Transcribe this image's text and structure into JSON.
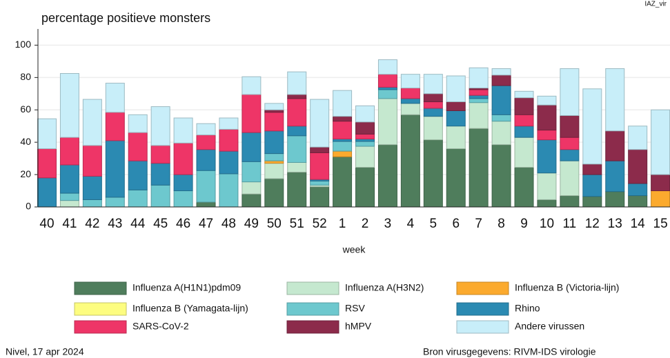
{
  "chart_data": {
    "type": "stacked_bar",
    "title": "percentage positieve monsters",
    "corner_label": "IAZ_vir",
    "x_label": "week",
    "footer_left": "Nivel, 17 apr 2024",
    "footer_right": "Bron virusgegevens: RIVM-IDS virologie",
    "categories": [
      "40",
      "41",
      "42",
      "43",
      "44",
      "45",
      "46",
      "47",
      "48",
      "49",
      "50",
      "51",
      "52",
      "1",
      "2",
      "3",
      "4",
      "5",
      "6",
      "7",
      "8",
      "9",
      "10",
      "11",
      "12",
      "13",
      "14",
      "15"
    ],
    "ylim": [
      0,
      110
    ],
    "yticks": [
      0,
      20,
      40,
      60,
      80,
      100
    ],
    "grid": true,
    "legend": "bottom",
    "series": [
      {
        "name": "Influenza A(H1N1)pdm09",
        "color": "#4f7d5c",
        "values": [
          0,
          0,
          0,
          0,
          0,
          0,
          0,
          3,
          0,
          8,
          17.5,
          21.5,
          12.5,
          31,
          24.5,
          38.5,
          57,
          41.5,
          36,
          48.5,
          38.5,
          24.5,
          4.5,
          7,
          6.5,
          9.5,
          7,
          0
        ]
      },
      {
        "name": "Influenza A(H3N2)",
        "color": "#c5e8cf",
        "values": [
          0,
          4,
          0,
          0,
          0,
          0,
          0,
          0,
          0,
          7.5,
          9.5,
          6,
          1,
          0,
          13,
          28.5,
          7,
          14.5,
          14,
          16,
          14.5,
          18.5,
          16.5,
          21.5,
          0,
          0,
          0,
          0
        ]
      },
      {
        "name": "Influenza B (Victoria-lijn)",
        "color": "#fbaa2e",
        "values": [
          0,
          0,
          0,
          0,
          0,
          0,
          0,
          0,
          0,
          0,
          1.5,
          0,
          0,
          3.5,
          0,
          0,
          0,
          0,
          0,
          0,
          0,
          0,
          0,
          0,
          0,
          0,
          0,
          10
        ]
      },
      {
        "name": "Influenza B (Yamagata-lijn)",
        "color": "#fdfd80",
        "values": [
          0,
          0,
          0,
          0,
          0,
          0,
          0,
          0,
          0,
          0,
          0,
          0,
          0,
          0,
          0,
          0,
          0,
          0,
          0,
          0,
          0,
          0,
          0,
          0,
          0,
          0,
          0,
          0
        ]
      },
      {
        "name": "RSV",
        "color": "#6dc8ce",
        "values": [
          0,
          4.5,
          4.5,
          6,
          10.5,
          13.5,
          10,
          19.5,
          20.5,
          12.5,
          4.5,
          16.5,
          2.5,
          6,
          3,
          5.5,
          0,
          0,
          0,
          2.5,
          4,
          0,
          0,
          0,
          0,
          0,
          0,
          0
        ]
      },
      {
        "name": "Rhino",
        "color": "#2b8ab2",
        "values": [
          18,
          17.5,
          14.5,
          35,
          18,
          13.5,
          10,
          13,
          14,
          18,
          14,
          6,
          1,
          1.5,
          1.5,
          1.5,
          3,
          5,
          9.5,
          2,
          18,
          7,
          20.5,
          7,
          13.5,
          19,
          7.5,
          0
        ]
      },
      {
        "name": "SARS-CoV-2",
        "color": "#ee3567",
        "values": [
          18,
          17,
          19,
          17.5,
          17.5,
          11,
          19.5,
          9,
          13.5,
          23.5,
          11.5,
          17,
          16.5,
          11,
          3,
          8,
          6.5,
          4,
          0,
          3.5,
          0,
          7,
          6,
          7.5,
          0,
          0,
          0,
          0
        ]
      },
      {
        "name": "hMPV",
        "color": "#8c2b4b",
        "values": [
          0,
          0,
          0,
          0,
          0,
          0,
          0,
          0,
          0,
          0,
          1.5,
          2.5,
          3.5,
          3,
          7.5,
          0,
          0,
          5,
          5.5,
          1,
          6.5,
          10.5,
          15.5,
          13.5,
          6.5,
          18.5,
          21,
          10
        ]
      },
      {
        "name": "Andere virussen",
        "color": "#c8eef9",
        "values": [
          18.5,
          39.5,
          28.5,
          18,
          11,
          24,
          15.5,
          7,
          7,
          11,
          4,
          14,
          29.5,
          16,
          10,
          9,
          8.5,
          12,
          16,
          12.5,
          4,
          4,
          5.5,
          29,
          46.5,
          38.5,
          14.5,
          40
        ]
      }
    ]
  }
}
